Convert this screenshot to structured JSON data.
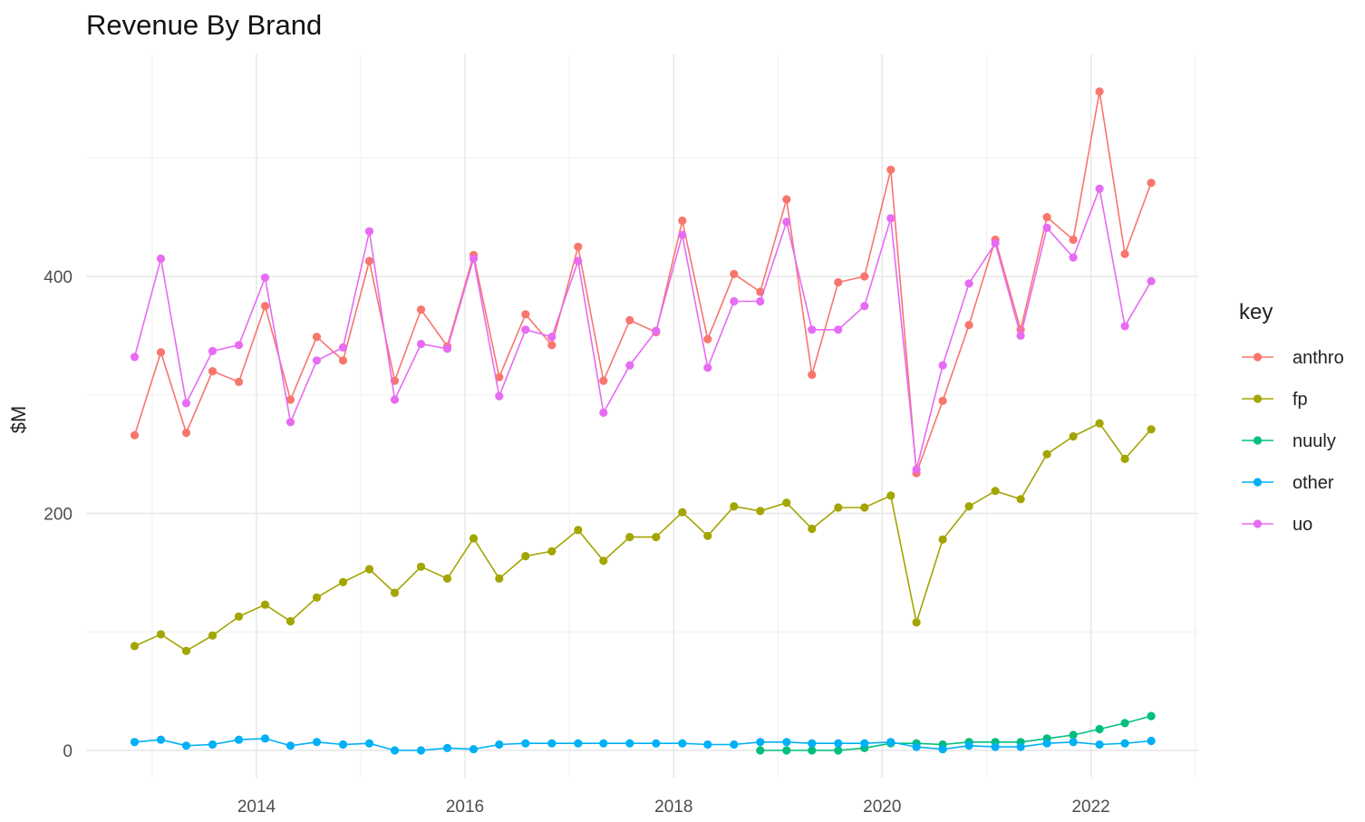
{
  "chart_data": {
    "type": "line",
    "title": "Revenue By Brand",
    "xlabel": "",
    "ylabel": "$M",
    "x_tick_labels": [
      "2014",
      "2016",
      "2018",
      "2020",
      "2022"
    ],
    "y_tick_labels": [
      "0",
      "200",
      "400"
    ],
    "ylim": [
      -20,
      565
    ],
    "grid": true,
    "legend": {
      "title": "key",
      "position": "right"
    },
    "x": [
      "2012-10-31",
      "2013-01-31",
      "2013-04-30",
      "2013-07-31",
      "2013-10-31",
      "2014-01-31",
      "2014-04-30",
      "2014-07-31",
      "2014-10-31",
      "2015-01-31",
      "2015-04-30",
      "2015-07-31",
      "2015-10-31",
      "2016-01-31",
      "2016-04-30",
      "2016-07-31",
      "2016-10-31",
      "2017-01-31",
      "2017-04-30",
      "2017-07-31",
      "2017-10-31",
      "2018-01-31",
      "2018-04-30",
      "2018-07-31",
      "2018-10-31",
      "2019-01-31",
      "2019-04-30",
      "2019-07-31",
      "2019-10-31",
      "2020-01-31",
      "2020-04-30",
      "2020-07-31",
      "2020-10-31",
      "2021-01-31",
      "2021-04-30",
      "2021-07-31",
      "2021-10-31",
      "2022-01-31",
      "2022-04-30",
      "2022-07-31"
    ],
    "series": [
      {
        "name": "anthro",
        "color": "#F8766D",
        "values": [
          266,
          336,
          268,
          320,
          311,
          375,
          296,
          349,
          329,
          413,
          312,
          372,
          341,
          418,
          315,
          368,
          342,
          425,
          312,
          363,
          353,
          447,
          347,
          402,
          387,
          465,
          317,
          395,
          400,
          490,
          234,
          295,
          359,
          431,
          355,
          450,
          431,
          556,
          419,
          479
        ]
      },
      {
        "name": "fp",
        "color": "#A3A500",
        "values": [
          88,
          98,
          84,
          97,
          113,
          123,
          109,
          129,
          142,
          153,
          133,
          155,
          145,
          179,
          145,
          164,
          168,
          186,
          160,
          180,
          180,
          201,
          181,
          206,
          202,
          209,
          187,
          205,
          205,
          215,
          108,
          178,
          206,
          219,
          212,
          250,
          265,
          276,
          246,
          271
        ]
      },
      {
        "name": "nuuly",
        "color": "#00BF7D",
        "values": [
          null,
          null,
          null,
          null,
          null,
          null,
          null,
          null,
          null,
          null,
          null,
          null,
          null,
          null,
          null,
          null,
          null,
          null,
          null,
          null,
          null,
          null,
          null,
          null,
          0,
          0,
          0,
          0,
          2,
          6,
          6,
          5,
          7,
          7,
          7,
          10,
          13,
          18,
          23,
          29
        ]
      },
      {
        "name": "other",
        "color": "#00B0F6",
        "values": [
          7,
          9,
          4,
          5,
          9,
          10,
          4,
          7,
          5,
          6,
          0,
          0,
          2,
          1,
          5,
          6,
          6,
          6,
          6,
          6,
          6,
          6,
          5,
          5,
          7,
          7,
          6,
          6,
          6,
          7,
          3,
          1,
          4,
          3,
          3,
          6,
          7,
          5,
          6,
          8
        ]
      },
      {
        "name": "uo",
        "color": "#E76BF3",
        "values": [
          332,
          415,
          293,
          337,
          342,
          399,
          277,
          329,
          340,
          438,
          296,
          343,
          339,
          415,
          299,
          355,
          349,
          413,
          285,
          325,
          354,
          435,
          323,
          379,
          379,
          446,
          355,
          355,
          375,
          449,
          237,
          325,
          394,
          428,
          350,
          441,
          416,
          474,
          358,
          396
        ]
      }
    ]
  }
}
